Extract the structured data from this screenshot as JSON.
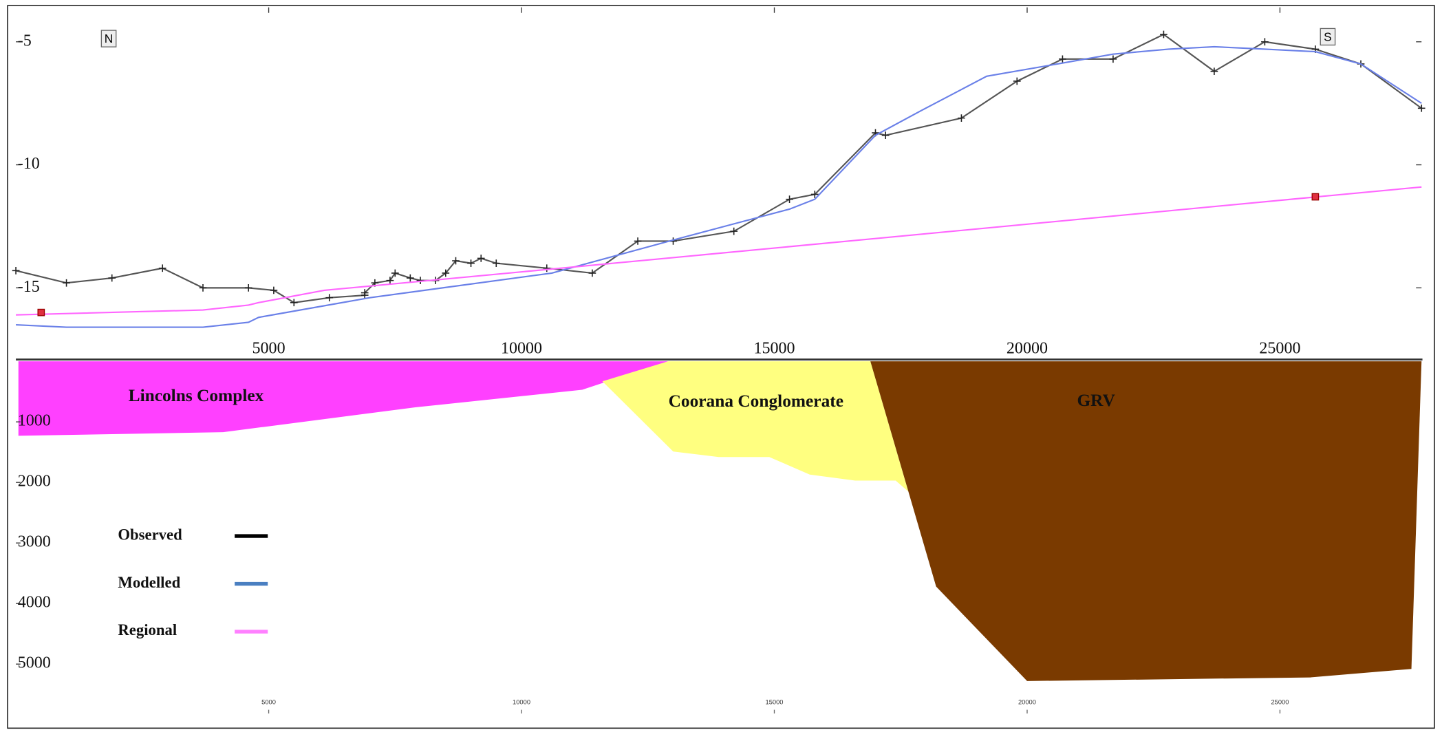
{
  "chart_data": [
    {
      "type": "line",
      "annotations": [
        "N",
        "S"
      ],
      "xlim": [
        0,
        27800
      ],
      "xticks": [
        5000,
        10000,
        15000,
        20000,
        25000
      ],
      "ylim": [
        -17.5,
        -3.6
      ],
      "yticks": [
        -5,
        -10,
        -15
      ],
      "series": [
        {
          "name": "Observed",
          "color": "#555555",
          "markers": true,
          "x": [
            0,
            1000,
            1900,
            2900,
            3700,
            4600,
            5100,
            5500,
            6200,
            6900,
            6900,
            7100,
            7400,
            7500,
            7800,
            8000,
            8300,
            8500,
            8700,
            9000,
            9200,
            9500,
            10500,
            11400,
            12300,
            13000,
            14200,
            15300,
            15800,
            17000,
            17200,
            18700,
            19800,
            20700,
            21700,
            22700,
            23700,
            24700,
            25700,
            26600,
            27800
          ],
          "values": [
            -14.3,
            -14.8,
            -14.6,
            -14.2,
            -15.0,
            -15.0,
            -15.1,
            -15.6,
            -15.4,
            -15.3,
            -15.2,
            -14.8,
            -14.7,
            -14.4,
            -14.6,
            -14.7,
            -14.7,
            -14.4,
            -13.9,
            -14.0,
            -13.8,
            -14.0,
            -14.2,
            -14.4,
            -13.1,
            -13.1,
            -12.7,
            -11.4,
            -11.2,
            -8.7,
            -8.8,
            -8.1,
            -6.6,
            -5.7,
            -5.7,
            -4.7,
            -6.2,
            -5.0,
            -5.3,
            -5.9,
            -7.7
          ]
        },
        {
          "name": "Modelled",
          "color": "#6a80e8",
          "legend_color": "#4a7fc1",
          "x": [
            0,
            1000,
            3700,
            4600,
            4800,
            7000,
            10600,
            13100,
            14200,
            15300,
            15800,
            17000,
            17900,
            19200,
            20600,
            21700,
            22800,
            23700,
            24700,
            25700,
            26600,
            27800
          ],
          "values": [
            -16.5,
            -16.6,
            -16.6,
            -16.4,
            -16.2,
            -15.4,
            -14.4,
            -13.0,
            -12.4,
            -11.8,
            -11.4,
            -8.8,
            -7.8,
            -6.4,
            -5.9,
            -5.5,
            -5.3,
            -5.2,
            -5.3,
            -5.4,
            -5.9,
            -7.5
          ]
        },
        {
          "name": "Regional",
          "color": "#ff66ff",
          "legend_color": "#ff80ff",
          "x": [
            0,
            3700,
            4600,
            4800,
            6100,
            11300,
            27800
          ],
          "values": [
            -16.1,
            -15.9,
            -15.7,
            -15.6,
            -15.1,
            -14.1,
            -10.9
          ]
        }
      ],
      "control_points": {
        "color": "#e03040",
        "x": [
          500,
          25700
        ],
        "values": [
          -16.0,
          -11.3
        ]
      }
    },
    {
      "type": "polygon",
      "xlim": [
        0,
        27800
      ],
      "xticks": [
        5000,
        10000,
        15000,
        20000,
        25000
      ],
      "ylim": [
        0,
        5800
      ],
      "yticks": [
        1000,
        2000,
        3000,
        4000,
        5000
      ],
      "bodies": [
        {
          "name": "Lincolns Complex",
          "color": "#ff40ff",
          "x": [
            50,
            12900,
            11200,
            7900,
            4100,
            50
          ],
          "values": [
            0,
            0,
            470,
            760,
            1170,
            1230
          ]
        },
        {
          "name": "Coorana Conglomerate",
          "color": "#ffff80",
          "x": [
            11600,
            12900,
            16900,
            17650,
            17400,
            16600,
            15700,
            14900,
            13900,
            13000
          ],
          "values": [
            330,
            0,
            0,
            2150,
            1970,
            1970,
            1870,
            1580,
            1580,
            1490
          ]
        },
        {
          "name": "GRV",
          "color": "#7a3a00",
          "x": [
            16900,
            27800,
            27600,
            25600,
            20000,
            18200
          ],
          "values": [
            0,
            0,
            5080,
            5220,
            5280,
            3720
          ]
        }
      ]
    }
  ]
}
